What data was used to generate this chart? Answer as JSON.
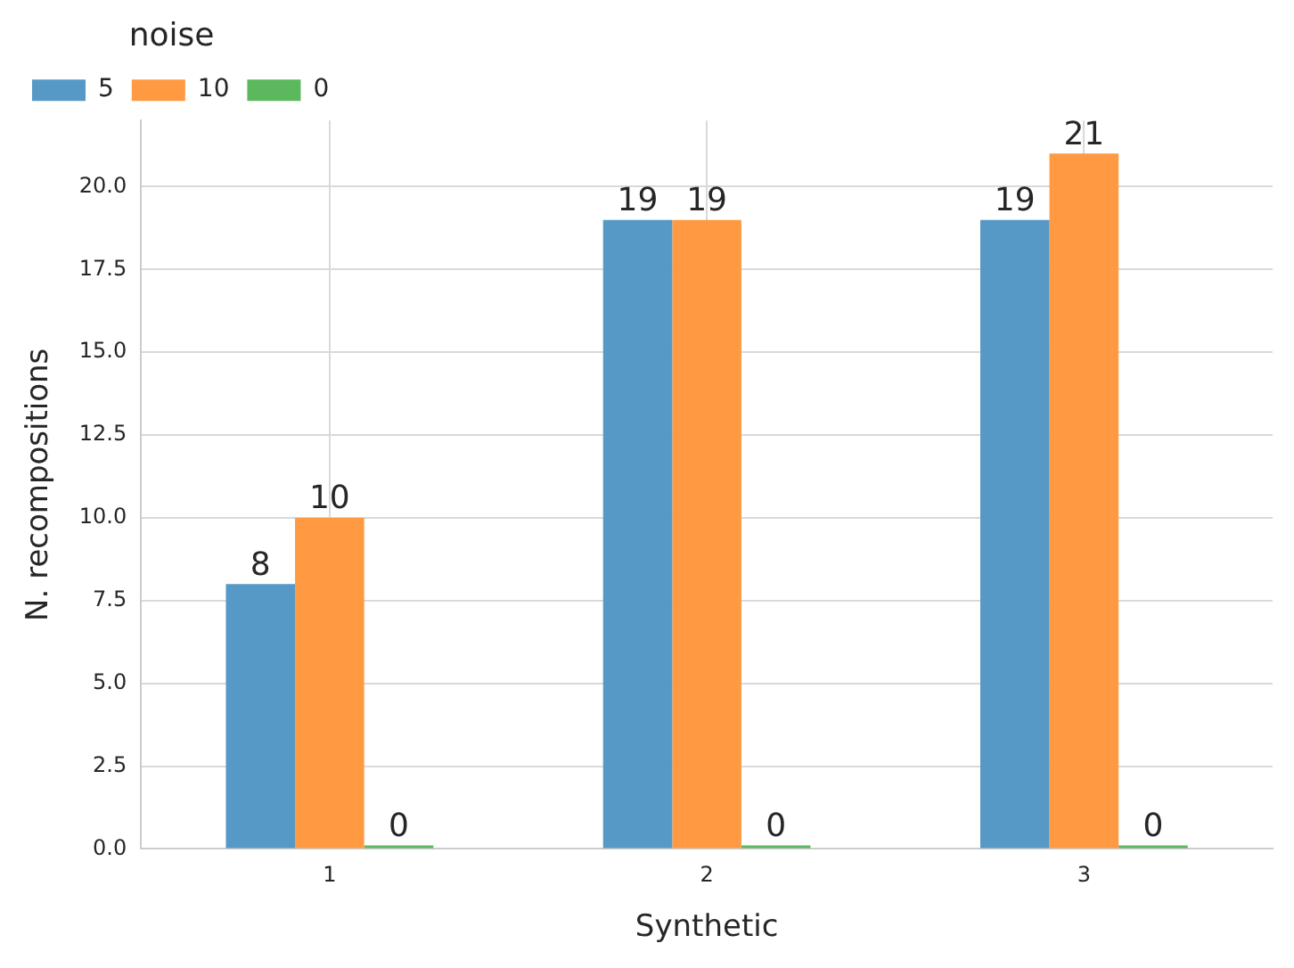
{
  "chart_data": {
    "type": "bar",
    "xlabel": "Synthetic",
    "ylabel": "N. recompositions",
    "legend_title": "noise",
    "categories": [
      "1",
      "2",
      "3"
    ],
    "series": [
      {
        "name": "5",
        "color": "#5799c6",
        "values": [
          8,
          19,
          19
        ]
      },
      {
        "name": "10",
        "color": "#ff9a42",
        "values": [
          10,
          19,
          21
        ]
      },
      {
        "name": "0",
        "color": "#5cb85c",
        "values": [
          0,
          0,
          0
        ]
      }
    ],
    "ylim": [
      0,
      22
    ],
    "yticks": [
      {
        "value": 0,
        "label": "0.0"
      },
      {
        "value": 2.5,
        "label": "2.5"
      },
      {
        "value": 5,
        "label": "5.0"
      },
      {
        "value": 7.5,
        "label": "7.5"
      },
      {
        "value": 10,
        "label": "10.0"
      },
      {
        "value": 12.5,
        "label": "12.5"
      },
      {
        "value": 15,
        "label": "15.0"
      },
      {
        "value": 17.5,
        "label": "17.5"
      },
      {
        "value": 20,
        "label": "20.0"
      }
    ],
    "grid": true,
    "legend": "top left",
    "data_labels": true
  }
}
